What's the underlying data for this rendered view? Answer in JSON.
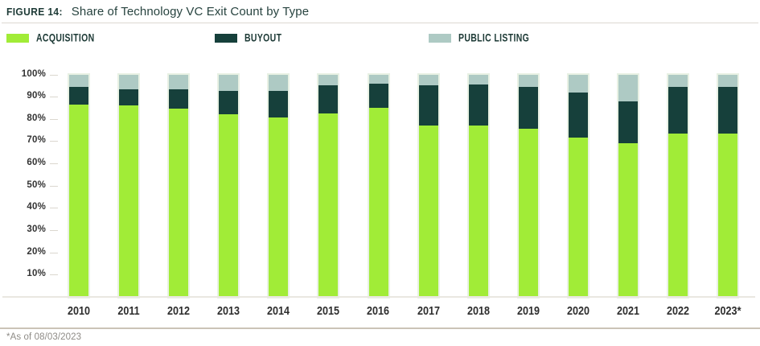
{
  "header": {
    "figure_label": "FIGURE 14:",
    "title": "Share of Technology VC Exit Count by Type"
  },
  "legend": [
    {
      "label": "ACQUISITION",
      "color": "#a1ec37"
    },
    {
      "label": "BUYOUT",
      "color": "#16403b"
    },
    {
      "label": "PUBLIC LISTING",
      "color": "#aecac4"
    }
  ],
  "chart_data": {
    "type": "bar",
    "stacked": true,
    "unit": "%",
    "title": "Share of Technology VC Exit Count by Type",
    "categories": [
      "2010",
      "2011",
      "2012",
      "2013",
      "2014",
      "2015",
      "2016",
      "2017",
      "2018",
      "2019",
      "2020",
      "2021",
      "2022",
      "2023*"
    ],
    "series": [
      {
        "name": "Acquisition",
        "color": "#a1ec37",
        "values": [
          86.5,
          86,
          84.5,
          82,
          80.5,
          82.5,
          85,
          77,
          77,
          75.5,
          71.5,
          69,
          73.5,
          73.5
        ]
      },
      {
        "name": "Buyout",
        "color": "#16403b",
        "values": [
          8,
          7.5,
          9,
          10.5,
          12,
          12.5,
          11,
          18,
          18.5,
          19,
          20.5,
          19,
          21,
          21
        ]
      },
      {
        "name": "Public Listing",
        "color": "#aecac4",
        "values": [
          5.5,
          6.5,
          6.5,
          7.5,
          7.5,
          5,
          4,
          5,
          4.5,
          5.5,
          8,
          12,
          5.5,
          5.5
        ]
      }
    ],
    "ylim": [
      0,
      100
    ],
    "ytick_labels": [
      "100%",
      "90%",
      "80%",
      "70%",
      "60%",
      "50%",
      "40%",
      "30%",
      "20%",
      "10%"
    ],
    "grid": false,
    "legend_position": "top"
  },
  "colors": {
    "bar_outline": "#e9f1e4",
    "axis_line": "#eae7e1",
    "tick_dash": "#dbd7cf",
    "header_text": "#27433f",
    "legend_text": "#1d3a36"
  },
  "footer": {
    "note": "*As of 08/03/2023"
  }
}
